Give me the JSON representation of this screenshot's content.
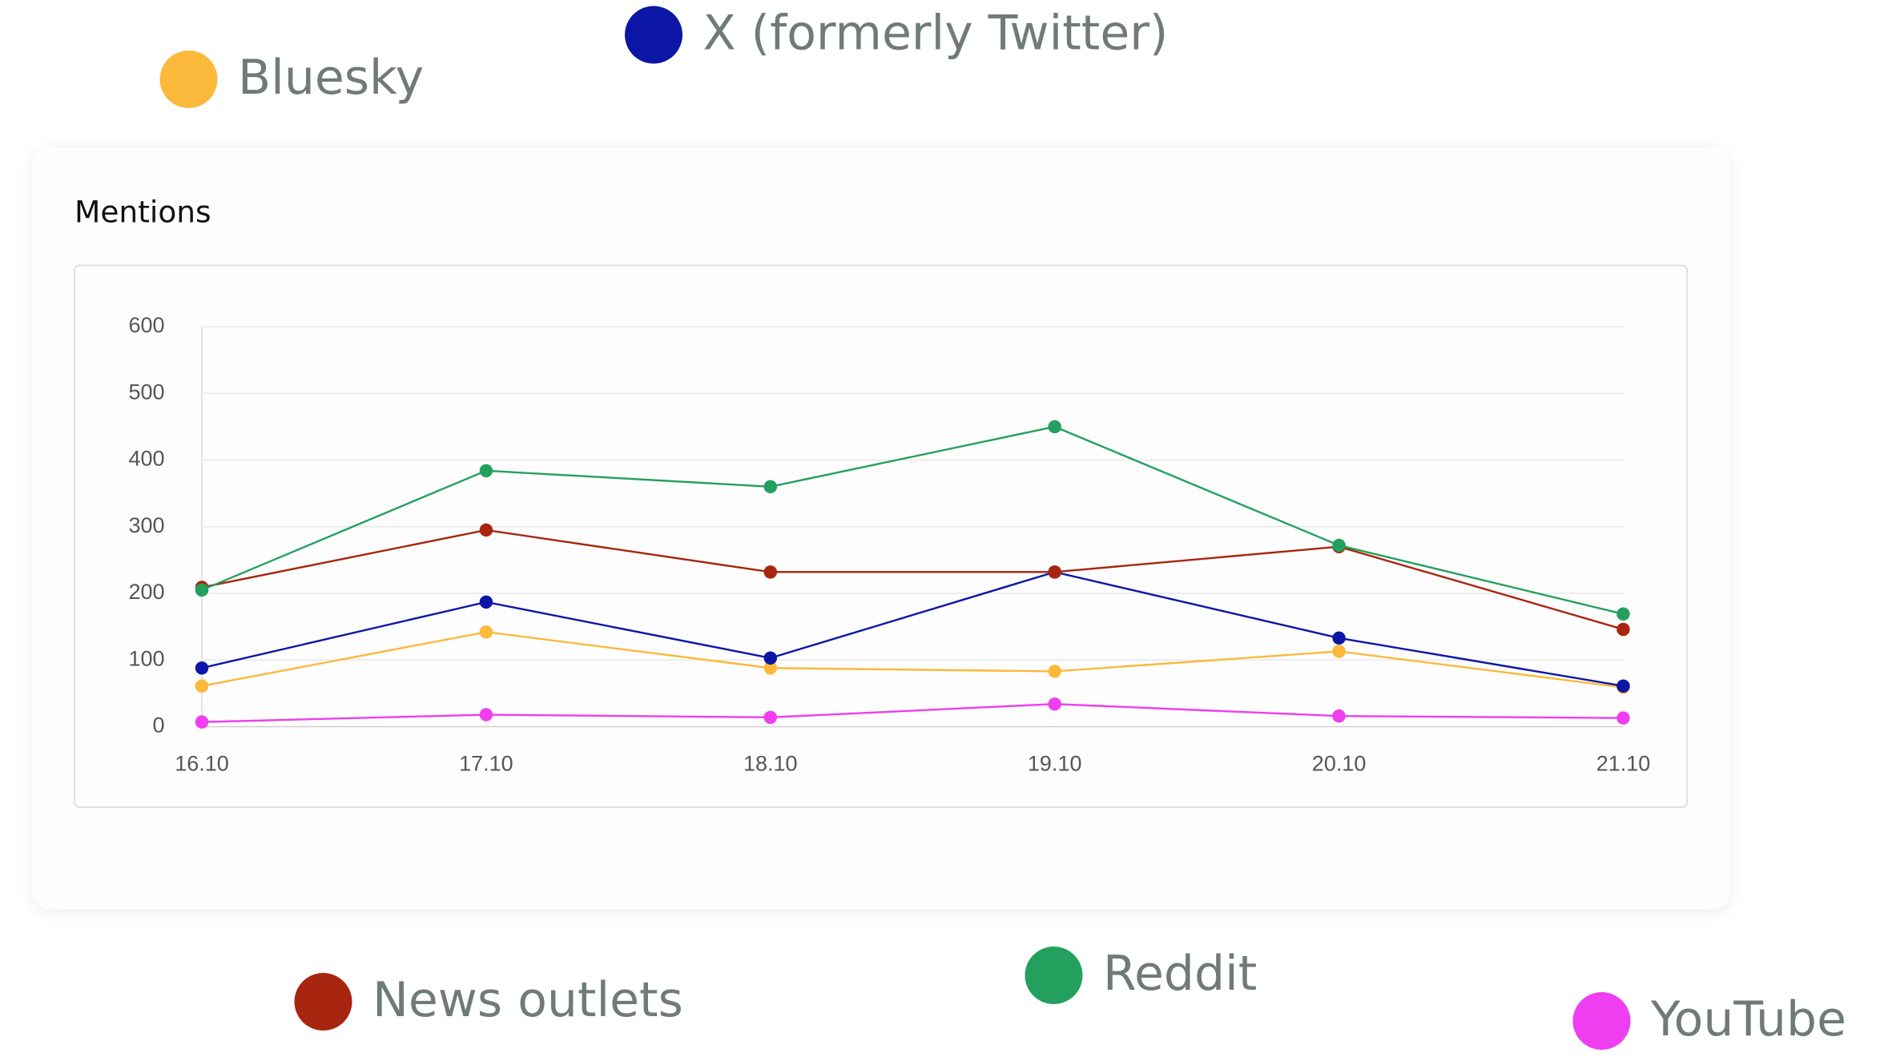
{
  "chart_data": {
    "type": "line",
    "title": "Mentions",
    "categories": [
      "16.10",
      "17.10",
      "18.10",
      "19.10",
      "20.10",
      "21.10"
    ],
    "ylim": [
      0,
      600
    ],
    "yticks": [
      0,
      100,
      200,
      300,
      400,
      500,
      600
    ],
    "grid": true,
    "series": [
      {
        "name": "Bluesky",
        "color": "#fbb93c",
        "values": [
          61,
          142,
          88,
          83,
          113,
          59
        ]
      },
      {
        "name": "X (formerly Twitter)",
        "color": "#0c16a6",
        "values": [
          88,
          187,
          103,
          232,
          133,
          61
        ]
      },
      {
        "name": "News outlets",
        "color": "#a8260f",
        "values": [
          209,
          295,
          232,
          232,
          270,
          146
        ]
      },
      {
        "name": "Reddit",
        "color": "#23a05e",
        "values": [
          205,
          384,
          360,
          450,
          272,
          169
        ]
      },
      {
        "name": "YouTube",
        "color": "#ee3ef0",
        "values": [
          7,
          18,
          14,
          34,
          16,
          13
        ]
      }
    ]
  }
}
